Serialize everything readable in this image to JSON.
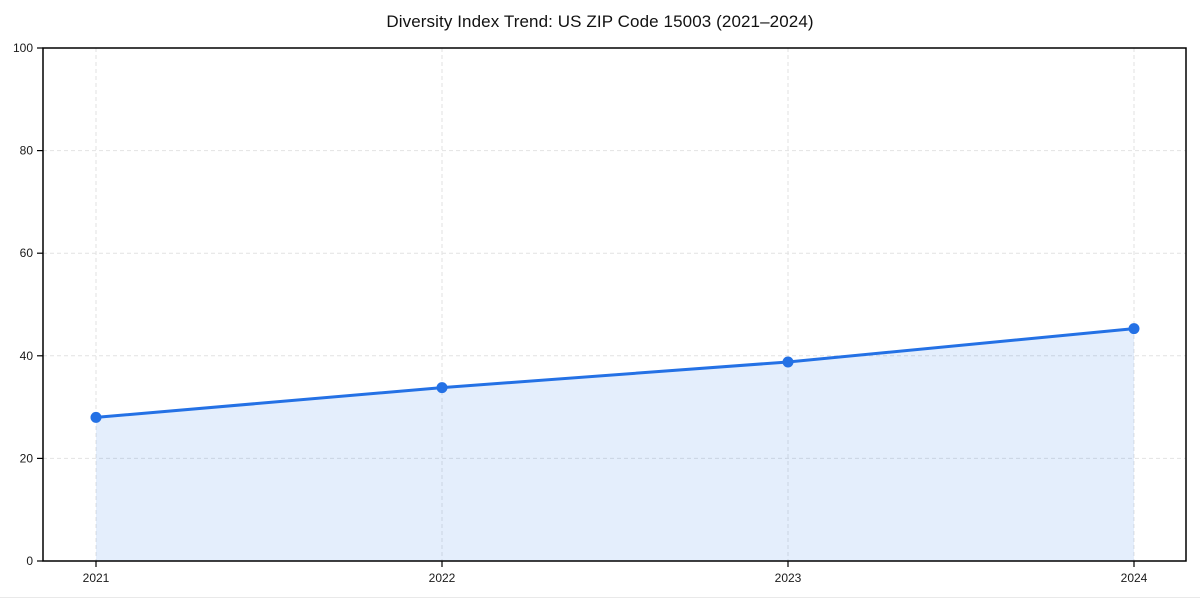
{
  "chart_data": {
    "type": "area",
    "title": "Diversity Index Trend: US ZIP Code 15003 (2021–2024)",
    "categories": [
      "2021",
      "2022",
      "2023",
      "2024"
    ],
    "values": [
      28.0,
      33.8,
      38.8,
      45.3
    ],
    "xlabel": "",
    "ylabel": "",
    "ylim": [
      0,
      100
    ],
    "yticks": [
      0,
      20,
      40,
      60,
      80,
      100
    ],
    "grid": true,
    "legend": "none",
    "line_color": "#2471e5",
    "marker_color": "#2471e5",
    "fill_color": "#2471e5",
    "fill_opacity": 0.12,
    "gridline_color": "#e2e2e2",
    "spine_color": "#000000",
    "background_color": "#ffffff"
  }
}
